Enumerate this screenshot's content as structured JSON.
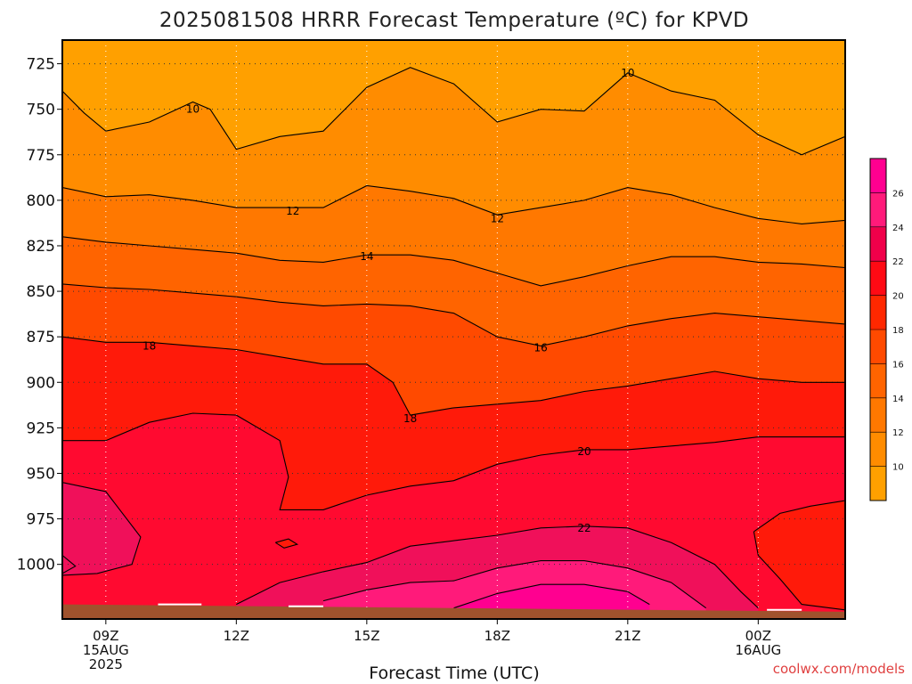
{
  "chart_data": {
    "type": "heatmap",
    "title": "2025081508 HRRR Forecast Temperature (ºC) for KPVD",
    "xlabel": "Forecast Time (UTC)",
    "ylabel": "",
    "credit": "coolwx.com/models",
    "x_ticks": [
      {
        "hour": 9,
        "lines": [
          "09Z",
          "15AUG",
          "2025"
        ]
      },
      {
        "hour": 12,
        "lines": [
          "12Z"
        ]
      },
      {
        "hour": 15,
        "lines": [
          "15Z"
        ]
      },
      {
        "hour": 18,
        "lines": [
          "18Z"
        ]
      },
      {
        "hour": 21,
        "lines": [
          "21Z"
        ]
      },
      {
        "hour": 24,
        "lines": [
          "00Z",
          "16AUG"
        ]
      }
    ],
    "xlim": [
      8,
      26
    ],
    "y_ticks": [
      725,
      750,
      775,
      800,
      825,
      850,
      875,
      900,
      925,
      950,
      975,
      1000
    ],
    "ylim": [
      712,
      1030
    ],
    "grid": true,
    "colorbar": {
      "ticks": [
        10,
        12,
        14,
        16,
        18,
        20,
        22,
        24,
        26
      ],
      "colors": [
        "#ffa000",
        "#ff8c00",
        "#ff7800",
        "#ff6400",
        "#ff4a00",
        "#ff2800",
        "#ff0a14",
        "#f0004a",
        "#ff1a7a",
        "#ff0090"
      ]
    },
    "band_colors": {
      "lt10": "#ffa000",
      "10-12": "#ff8c00",
      "12-14": "#ff7800",
      "14-16": "#ff6400",
      "16-18": "#ff4a00",
      "18-20": "#ff1a0a",
      "20-22": "#ff0a30",
      "22-24": "#f0105a",
      "24-26": "#ff1a7a",
      "gt26": "#ff0090"
    },
    "ground_color": "#a0522d",
    "isotherms": [
      {
        "temp": 10,
        "points": [
          [
            8,
            740
          ],
          [
            8.5,
            752
          ],
          [
            9,
            762
          ],
          [
            10,
            757
          ],
          [
            11,
            746
          ],
          [
            11.4,
            750
          ],
          [
            12,
            772
          ],
          [
            13,
            765
          ],
          [
            14,
            762
          ],
          [
            15,
            738
          ],
          [
            16,
            727
          ],
          [
            17,
            736
          ],
          [
            18,
            757
          ],
          [
            19,
            750
          ],
          [
            20,
            751
          ],
          [
            21,
            730
          ],
          [
            22,
            740
          ],
          [
            23,
            745
          ],
          [
            24,
            764
          ],
          [
            25,
            775
          ],
          [
            26,
            765
          ]
        ]
      },
      {
        "temp": 12,
        "points": [
          [
            8,
            793
          ],
          [
            9,
            798
          ],
          [
            10,
            797
          ],
          [
            11,
            800
          ],
          [
            12,
            804
          ],
          [
            13,
            804
          ],
          [
            14,
            804
          ],
          [
            15,
            792
          ],
          [
            16,
            795
          ],
          [
            17,
            799
          ],
          [
            18,
            808
          ],
          [
            19,
            804
          ],
          [
            20,
            800
          ],
          [
            21,
            793
          ],
          [
            22,
            797
          ],
          [
            23,
            804
          ],
          [
            24,
            810
          ],
          [
            25,
            813
          ],
          [
            26,
            811
          ]
        ]
      },
      {
        "temp": 14,
        "points": [
          [
            8,
            820
          ],
          [
            9,
            823
          ],
          [
            10,
            825
          ],
          [
            11,
            827
          ],
          [
            12,
            829
          ],
          [
            13,
            833
          ],
          [
            14,
            834
          ],
          [
            15,
            830
          ],
          [
            16,
            830
          ],
          [
            17,
            833
          ],
          [
            18,
            840
          ],
          [
            19,
            847
          ],
          [
            20,
            842
          ],
          [
            21,
            836
          ],
          [
            22,
            831
          ],
          [
            23,
            831
          ],
          [
            24,
            834
          ],
          [
            25,
            835
          ],
          [
            26,
            837
          ]
        ]
      },
      {
        "temp": 16,
        "points": [
          [
            8,
            846
          ],
          [
            9,
            848
          ],
          [
            10,
            849
          ],
          [
            11,
            851
          ],
          [
            12,
            853
          ],
          [
            13,
            856
          ],
          [
            14,
            858
          ],
          [
            15,
            857
          ],
          [
            16,
            858
          ],
          [
            17,
            862
          ],
          [
            18,
            875
          ],
          [
            19,
            880
          ],
          [
            20,
            875
          ],
          [
            21,
            869
          ],
          [
            22,
            865
          ],
          [
            23,
            862
          ],
          [
            24,
            864
          ],
          [
            25,
            866
          ],
          [
            26,
            868
          ]
        ]
      },
      {
        "temp": 18,
        "points": [
          [
            8,
            875
          ],
          [
            9,
            878
          ],
          [
            10,
            878
          ],
          [
            11,
            880
          ],
          [
            12,
            882
          ],
          [
            13,
            886
          ],
          [
            14,
            890
          ],
          [
            15,
            890
          ],
          [
            15.6,
            900
          ],
          [
            16,
            918
          ],
          [
            17,
            914
          ],
          [
            18,
            912
          ],
          [
            19,
            910
          ],
          [
            20,
            905
          ],
          [
            21,
            902
          ],
          [
            22,
            898
          ],
          [
            23,
            894
          ],
          [
            24,
            898
          ],
          [
            25,
            900
          ],
          [
            26,
            900
          ]
        ]
      },
      {
        "temp": 20,
        "points": [
          [
            8,
            932
          ],
          [
            9,
            932
          ],
          [
            10,
            922
          ],
          [
            11,
            917
          ],
          [
            12,
            918
          ],
          [
            13,
            932
          ],
          [
            13.2,
            952
          ],
          [
            13,
            970
          ],
          [
            14,
            970
          ],
          [
            15,
            962
          ],
          [
            16,
            957
          ],
          [
            17,
            954
          ],
          [
            18,
            945
          ],
          [
            19,
            940
          ],
          [
            20,
            937
          ],
          [
            21,
            937
          ],
          [
            22,
            935
          ],
          [
            23,
            933
          ],
          [
            24,
            930
          ],
          [
            25,
            930
          ],
          [
            26,
            930
          ]
        ]
      },
      {
        "temp": 22,
        "points": [
          [
            8,
            955
          ],
          [
            9,
            960
          ],
          [
            9.8,
            985
          ],
          [
            9.6,
            1000
          ],
          [
            8.8,
            1005
          ],
          [
            8,
            1006
          ]
        ]
      },
      {
        "temp": 22,
        "points": [
          [
            12,
            1022
          ],
          [
            13,
            1010
          ],
          [
            14,
            1004
          ],
          [
            15,
            999
          ],
          [
            16,
            990
          ],
          [
            17,
            987
          ],
          [
            18,
            984
          ],
          [
            19,
            980
          ],
          [
            20,
            979
          ],
          [
            21,
            980
          ],
          [
            22,
            988
          ],
          [
            23,
            1000
          ],
          [
            23.6,
            1015
          ],
          [
            24,
            1024
          ]
        ]
      },
      {
        "temp": 24,
        "points": [
          [
            14,
            1020
          ],
          [
            15,
            1014
          ],
          [
            16,
            1010
          ],
          [
            17,
            1009
          ],
          [
            18,
            1002
          ],
          [
            19,
            998
          ],
          [
            20,
            998
          ],
          [
            21,
            1002
          ],
          [
            22,
            1010
          ],
          [
            22.8,
            1024
          ]
        ]
      },
      {
        "temp": 26,
        "points": [
          [
            17,
            1024
          ],
          [
            18,
            1016
          ],
          [
            19,
            1011
          ],
          [
            20,
            1011
          ],
          [
            21,
            1015
          ],
          [
            21.5,
            1022
          ]
        ]
      }
    ],
    "contour_labels": [
      {
        "text": "10",
        "x": 11.0,
        "y": 750
      },
      {
        "text": "10",
        "x": 21.0,
        "y": 730
      },
      {
        "text": "12",
        "x": 13.3,
        "y": 806
      },
      {
        "text": "12",
        "x": 18.0,
        "y": 810
      },
      {
        "text": "14",
        "x": 15.0,
        "y": 831
      },
      {
        "text": "16",
        "x": 19.0,
        "y": 881
      },
      {
        "text": "18",
        "x": 10.0,
        "y": 880
      },
      {
        "text": "18",
        "x": 16.0,
        "y": 920
      },
      {
        "text": "20",
        "x": 20.0,
        "y": 938
      },
      {
        "text": "22",
        "x": 20.0,
        "y": 980
      }
    ]
  }
}
